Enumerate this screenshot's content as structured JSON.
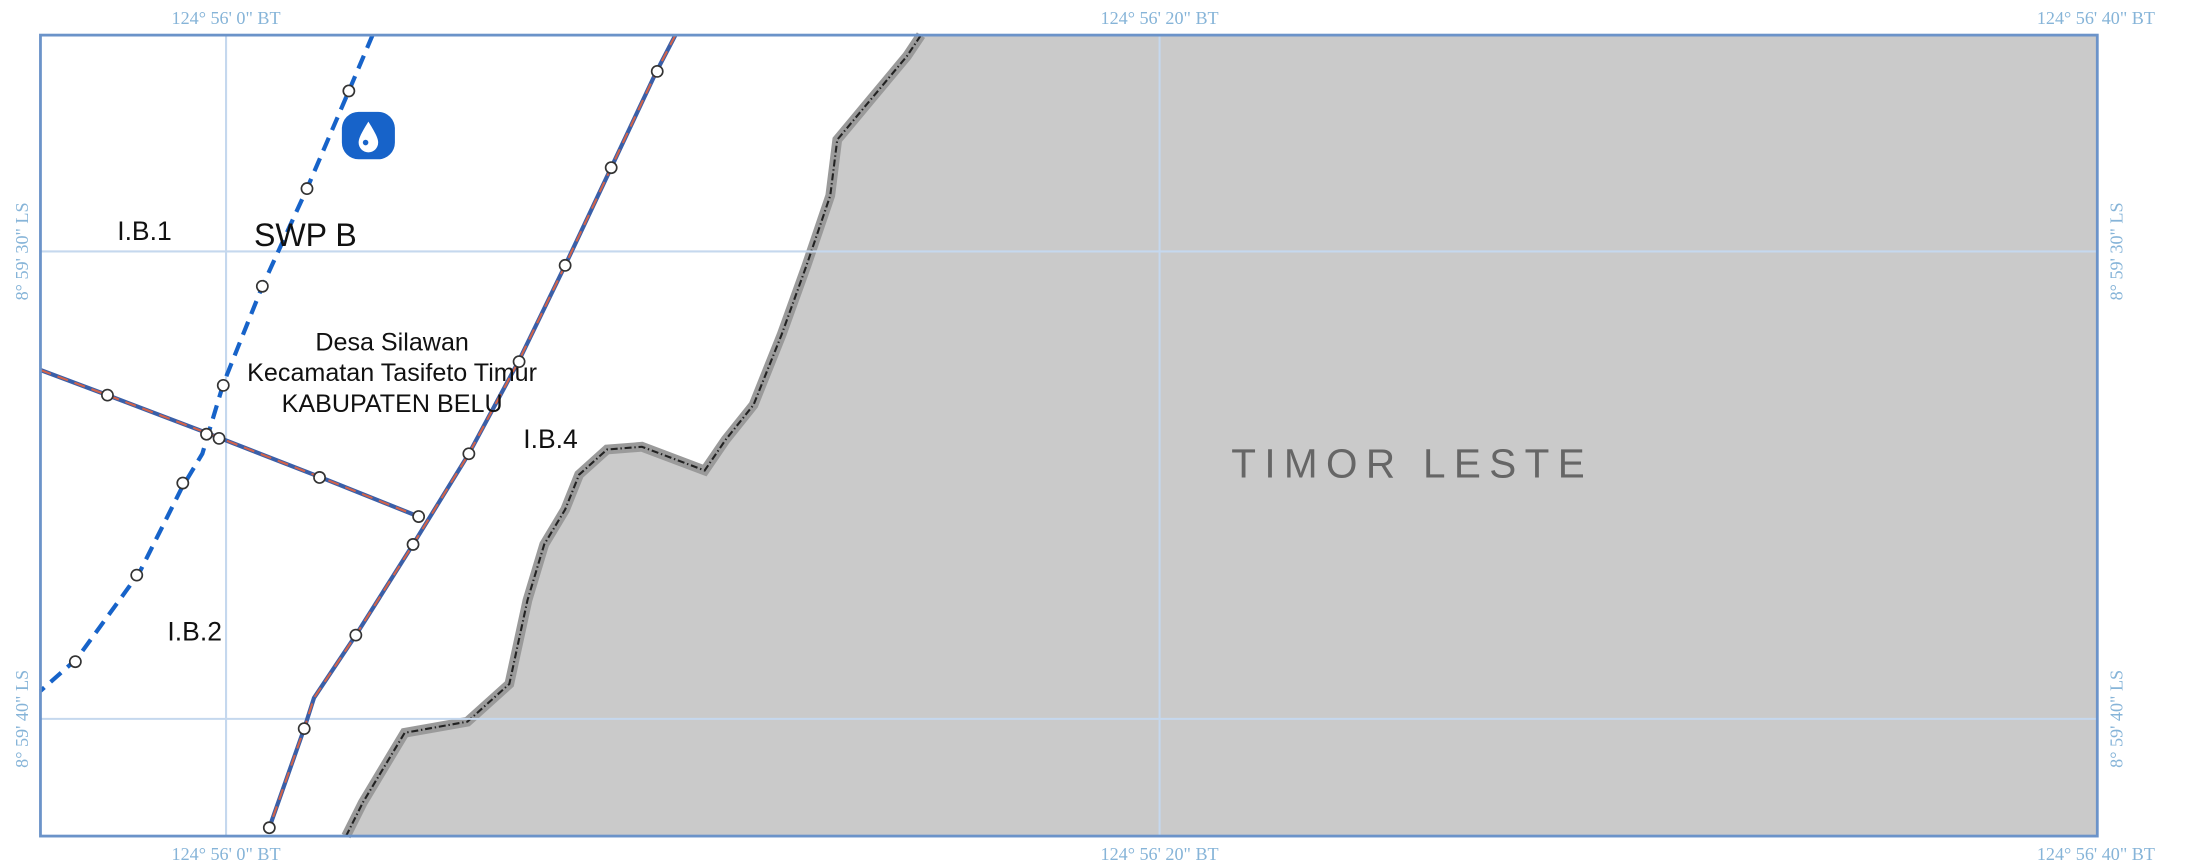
{
  "grid": {
    "lon_labels": [
      "124° 56' 0\" BT",
      "124° 56' 20\" BT",
      "124° 56' 40\" BT"
    ],
    "lat_labels": [
      "8° 59' 30\" LS",
      "8° 59' 40\" LS"
    ]
  },
  "labels": {
    "zone_1": "I.B.1",
    "swp": "SWP B",
    "village": "Desa Silawan",
    "district": "Kecamatan Tasifeto Timur",
    "regency": "KABUPATEN BELU",
    "zone_4": "I.B.4",
    "zone_2": "I.B.2",
    "country": "TIMOR LESTE"
  }
}
